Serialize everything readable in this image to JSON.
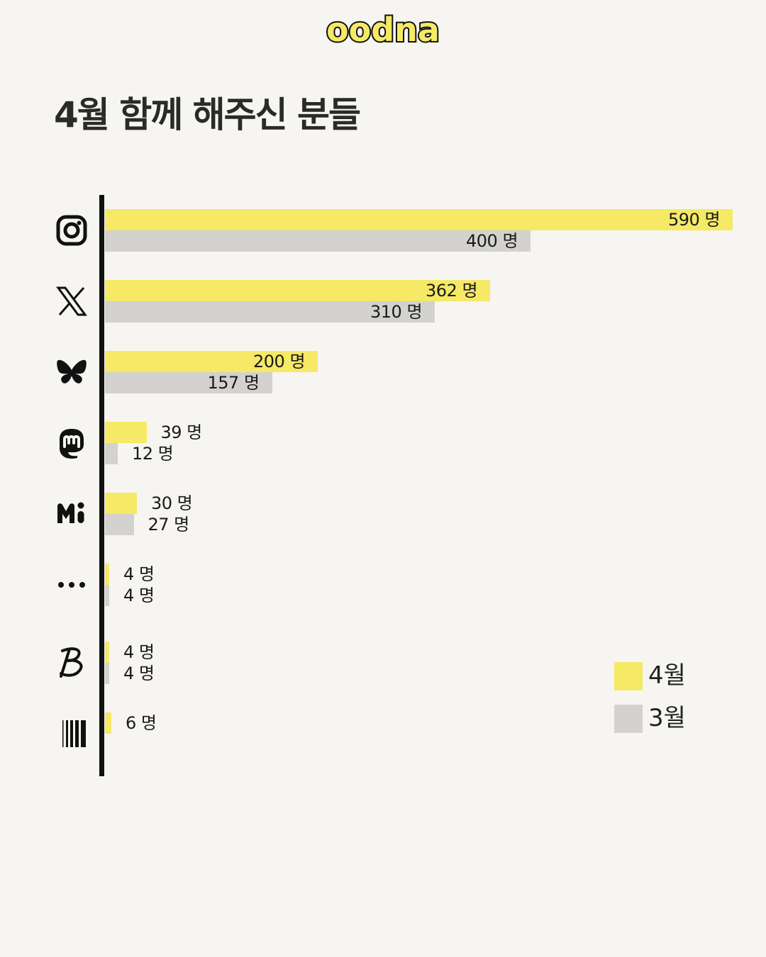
{
  "logo": {
    "text": "oodna"
  },
  "title": "4월 함께 해주신 분들",
  "chart_data": {
    "type": "bar",
    "orientation": "horizontal",
    "title": "4월 함께 해주신 분들",
    "unit": "명",
    "categories": [
      "Instagram",
      "X",
      "Bluesky",
      "Mastodon",
      "Misskey",
      "기타",
      "Blogger",
      "Tumblr"
    ],
    "series": [
      {
        "name": "4월",
        "color": "#f5e966",
        "values": [
          590,
          362,
          200,
          39,
          30,
          4,
          4,
          6
        ]
      },
      {
        "name": "3월",
        "color": "#d3d2cf",
        "values": [
          400,
          310,
          157,
          12,
          27,
          4,
          4,
          null
        ]
      }
    ],
    "labels": {
      "4월": [
        "590 명",
        "362 명",
        "200 명",
        "39 명",
        "30 명",
        "4 명",
        "4 명",
        "6 명"
      ],
      "3월": [
        "400 명",
        "310 명",
        "157 명",
        "12 명",
        "27 명",
        "4 명",
        "4 명",
        ""
      ]
    },
    "xlim": [
      0,
      590
    ],
    "grid": false,
    "legend": "bottom-right"
  },
  "icons": [
    "instagram-icon",
    "x-icon",
    "bluesky-icon",
    "mastodon-icon",
    "misskey-icon",
    "more-icon",
    "blogger-icon",
    "tumblr-icon"
  ],
  "legend": {
    "apr_label": "4월",
    "mar_label": "3월",
    "apr_color": "#f5e966",
    "mar_color": "#d3d2cf"
  }
}
